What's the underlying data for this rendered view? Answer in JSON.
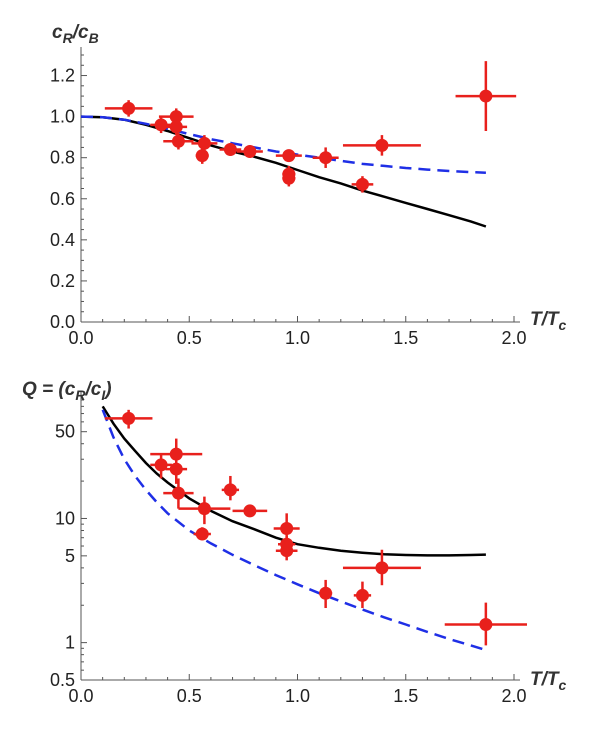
{
  "colors": {
    "points": "#e8201c",
    "solid": "#000000",
    "dashed": "#1f2fe6",
    "axis": "#555555"
  },
  "chart_data": [
    {
      "id": "top",
      "type": "scatter",
      "ylabel": "cR/cB",
      "ylabel_parts": [
        "c",
        "R",
        "/c",
        "B"
      ],
      "xlabel_parts": [
        "T",
        "/T",
        "c"
      ],
      "xlim": [
        0,
        2
      ],
      "ylim": [
        0,
        1.3
      ],
      "yscale": "linear",
      "xticks": [
        0.0,
        0.5,
        1.0,
        1.5,
        2.0
      ],
      "xtick_labels": [
        "0.0",
        "0.5",
        "1.0",
        "1.5",
        "2.0"
      ],
      "yticks": [
        0.0,
        0.2,
        0.4,
        0.6,
        0.8,
        1.0,
        1.2
      ],
      "ytick_labels": [
        "0.0",
        "0.2",
        "0.4",
        "0.6",
        "0.8",
        "1.0",
        "1.2"
      ],
      "points": [
        {
          "x": 0.22,
          "y": 1.04,
          "xerr": 0.11,
          "yerr": 0.04
        },
        {
          "x": 0.37,
          "y": 0.96,
          "xerr": 0.05,
          "yerr": 0.04
        },
        {
          "x": 0.44,
          "y": 1.0,
          "xerr": 0.08,
          "yerr": 0.04
        },
        {
          "x": 0.44,
          "y": 0.95,
          "xerr": 0.05,
          "yerr": 0.04
        },
        {
          "x": 0.45,
          "y": 0.88,
          "xerr": 0.07,
          "yerr": 0.04
        },
        {
          "x": 0.56,
          "y": 0.81,
          "xerr": 0.03,
          "yerr": 0.04
        },
        {
          "x": 0.57,
          "y": 0.87,
          "xerr": 0.06,
          "yerr": 0.04
        },
        {
          "x": 0.69,
          "y": 0.84,
          "xerr": 0.05,
          "yerr": 0.03
        },
        {
          "x": 0.78,
          "y": 0.83,
          "xerr": 0.06,
          "yerr": 0.03
        },
        {
          "x": 0.96,
          "y": 0.81,
          "xerr": 0.06,
          "yerr": 0.03
        },
        {
          "x": 0.96,
          "y": 0.72,
          "xerr": 0.03,
          "yerr": 0.04
        },
        {
          "x": 0.96,
          "y": 0.7,
          "xerr": 0.03,
          "yerr": 0.04
        },
        {
          "x": 1.13,
          "y": 0.8,
          "xerr": 0.06,
          "yerr": 0.05
        },
        {
          "x": 1.3,
          "y": 0.67,
          "xerr": 0.05,
          "yerr": 0.04
        },
        {
          "x": 1.39,
          "y": 0.86,
          "xerr": 0.18,
          "yerr": 0.05
        },
        {
          "x": 1.87,
          "y": 1.1,
          "xerr": 0.14,
          "yerr": 0.17
        }
      ],
      "series": [
        {
          "name": "solid",
          "style": "solid",
          "x": [
            0.0,
            0.1,
            0.2,
            0.3,
            0.4,
            0.5,
            0.6,
            0.7,
            0.8,
            0.9,
            1.0,
            1.1,
            1.2,
            1.3,
            1.4,
            1.5,
            1.6,
            1.7,
            1.8,
            1.87
          ],
          "y": [
            1.0,
            0.997,
            0.985,
            0.96,
            0.93,
            0.895,
            0.86,
            0.83,
            0.805,
            0.775,
            0.74,
            0.705,
            0.675,
            0.64,
            0.61,
            0.58,
            0.55,
            0.52,
            0.49,
            0.465
          ]
        },
        {
          "name": "dashed",
          "style": "dashed",
          "x": [
            0.0,
            0.1,
            0.2,
            0.3,
            0.4,
            0.5,
            0.6,
            0.7,
            0.8,
            0.9,
            1.0,
            1.1,
            1.2,
            1.3,
            1.4,
            1.5,
            1.6,
            1.7,
            1.8,
            1.87
          ],
          "y": [
            1.0,
            0.997,
            0.985,
            0.965,
            0.94,
            0.915,
            0.89,
            0.87,
            0.85,
            0.83,
            0.815,
            0.8,
            0.785,
            0.77,
            0.76,
            0.75,
            0.742,
            0.735,
            0.73,
            0.727
          ]
        }
      ]
    },
    {
      "id": "bottom",
      "type": "scatter",
      "ylabel": "Q = (cR/cI)",
      "ylabel_parts": [
        "Q = (c",
        "R",
        "/c",
        "I",
        ")"
      ],
      "xlabel_parts": [
        "T",
        "/T",
        "c"
      ],
      "xlim": [
        0,
        2
      ],
      "ylim": [
        0.5,
        90
      ],
      "yscale": "log",
      "xticks": [
        0.0,
        0.5,
        1.0,
        1.5,
        2.0
      ],
      "xtick_labels": [
        "0.0",
        "0.5",
        "1.0",
        "1.5",
        "2.0"
      ],
      "yticks": [
        0.5,
        1,
        5,
        10,
        50
      ],
      "ytick_labels": [
        "0.5",
        "1",
        "5",
        "10",
        "50"
      ],
      "points": [
        {
          "x": 0.22,
          "y": 64,
          "xerr": 0.11,
          "ylo": 53,
          "yhi": 75
        },
        {
          "x": 0.37,
          "y": 27,
          "xerr": 0.05,
          "ylo": 21,
          "yhi": 33
        },
        {
          "x": 0.44,
          "y": 33,
          "xerr": 0.12,
          "ylo": 27,
          "yhi": 44
        },
        {
          "x": 0.44,
          "y": 25,
          "xerr": 0.05,
          "ylo": 19,
          "yhi": 30
        },
        {
          "x": 0.45,
          "y": 16,
          "xerr": 0.07,
          "ylo": 12,
          "yhi": 21
        },
        {
          "x": 0.56,
          "y": 7.5,
          "xerr": 0.04,
          "ylo": 6.7,
          "yhi": 8.5
        },
        {
          "x": 0.57,
          "y": 12,
          "xerr": 0.12,
          "ylo": 9,
          "yhi": 15
        },
        {
          "x": 0.69,
          "y": 17,
          "xerr": 0.04,
          "ylo": 14,
          "yhi": 22
        },
        {
          "x": 0.78,
          "y": 11.5,
          "xerr": 0.08,
          "ylo": 10.5,
          "yhi": 12.5
        },
        {
          "x": 0.95,
          "y": 8.3,
          "xerr": 0.06,
          "ylo": 6.5,
          "yhi": 11
        },
        {
          "x": 0.95,
          "y": 6.2,
          "xerr": 0.04,
          "ylo": 5.3,
          "yhi": 7.2
        },
        {
          "x": 0.95,
          "y": 5.5,
          "xerr": 0.05,
          "ylo": 4.6,
          "yhi": 6.3
        },
        {
          "x": 1.13,
          "y": 2.5,
          "xerr": 0.03,
          "ylo": 1.9,
          "yhi": 3.2
        },
        {
          "x": 1.3,
          "y": 2.4,
          "xerr": 0.04,
          "ylo": 1.9,
          "yhi": 3.1
        },
        {
          "x": 1.39,
          "y": 4.0,
          "xerr": 0.18,
          "ylo": 2.9,
          "yhi": 5.6
        },
        {
          "x": 1.87,
          "y": 1.4,
          "xerr": 0.19,
          "ylo": 0.95,
          "yhi": 2.1
        }
      ],
      "series": [
        {
          "name": "solid",
          "style": "solid",
          "x": [
            0.1,
            0.15,
            0.2,
            0.25,
            0.3,
            0.35,
            0.4,
            0.5,
            0.6,
            0.7,
            0.8,
            0.9,
            1.0,
            1.1,
            1.2,
            1.3,
            1.4,
            1.5,
            1.6,
            1.7,
            1.8,
            1.87
          ],
          "y": [
            80,
            58,
            44,
            35,
            28,
            23,
            19.5,
            14.5,
            11.5,
            9.5,
            8.2,
            7.0,
            6.2,
            5.8,
            5.5,
            5.3,
            5.15,
            5.08,
            5.04,
            5.04,
            5.08,
            5.12
          ]
        },
        {
          "name": "dashed",
          "style": "dashed",
          "x": [
            0.1,
            0.15,
            0.2,
            0.25,
            0.3,
            0.35,
            0.4,
            0.5,
            0.6,
            0.7,
            0.8,
            0.9,
            1.0,
            1.1,
            1.2,
            1.3,
            1.4,
            1.5,
            1.6,
            1.7,
            1.8,
            1.87
          ],
          "y": [
            75,
            45,
            30,
            22,
            17,
            13.5,
            11,
            8.0,
            6.3,
            5.1,
            4.2,
            3.5,
            2.95,
            2.5,
            2.15,
            1.85,
            1.6,
            1.4,
            1.22,
            1.07,
            0.95,
            0.87
          ]
        }
      ]
    }
  ]
}
